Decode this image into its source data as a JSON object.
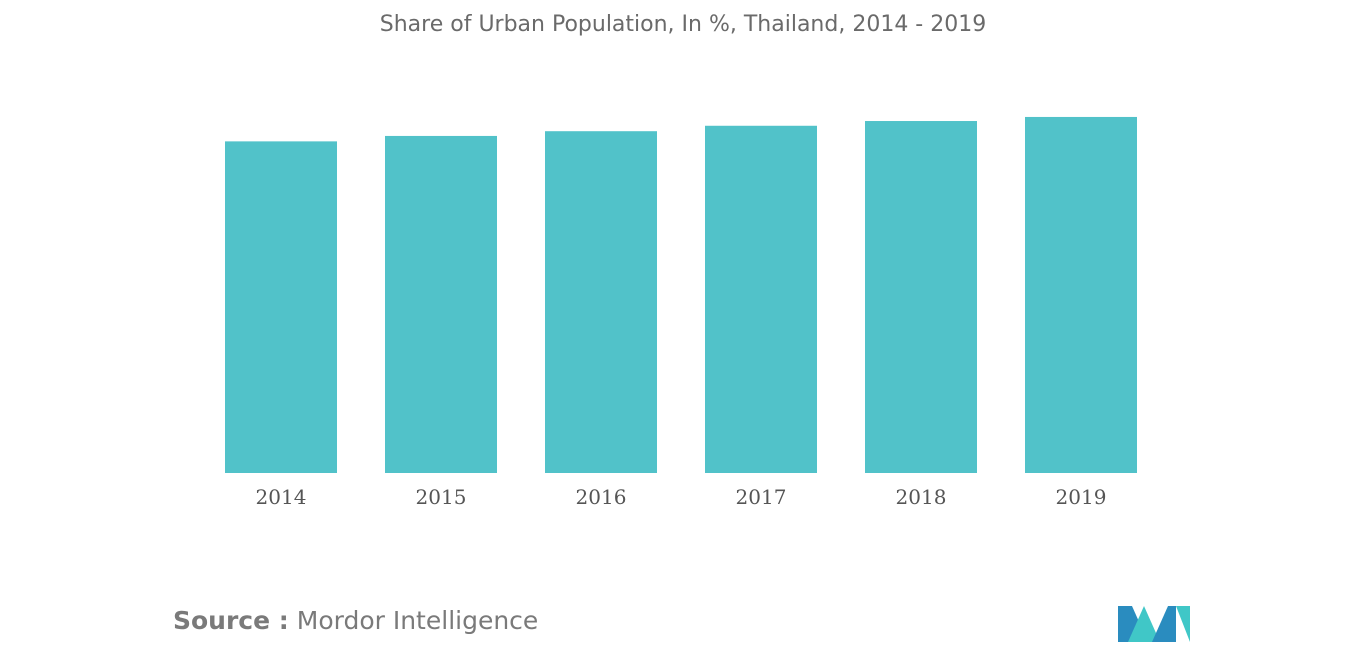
{
  "chart_data": {
    "type": "bar",
    "title": "Share of Urban Population, In %, Thailand, 2014 - 2019",
    "categories": [
      "2014",
      "2015",
      "2016",
      "2017",
      "2018",
      "2019"
    ],
    "values": [
      48.9,
      49.7,
      50.4,
      51.2,
      51.9,
      52.5
    ],
    "xlabel": "",
    "ylabel": "",
    "ylim": [
      0,
      55
    ],
    "grid": false,
    "bar_color": "#51c2c9"
  },
  "source": {
    "label": "Source :",
    "name": "Mordor Intelligence"
  },
  "logo": {
    "icon": "mordor-intelligence-logo",
    "colors": [
      "#2a8cbf",
      "#40c7c7"
    ]
  }
}
